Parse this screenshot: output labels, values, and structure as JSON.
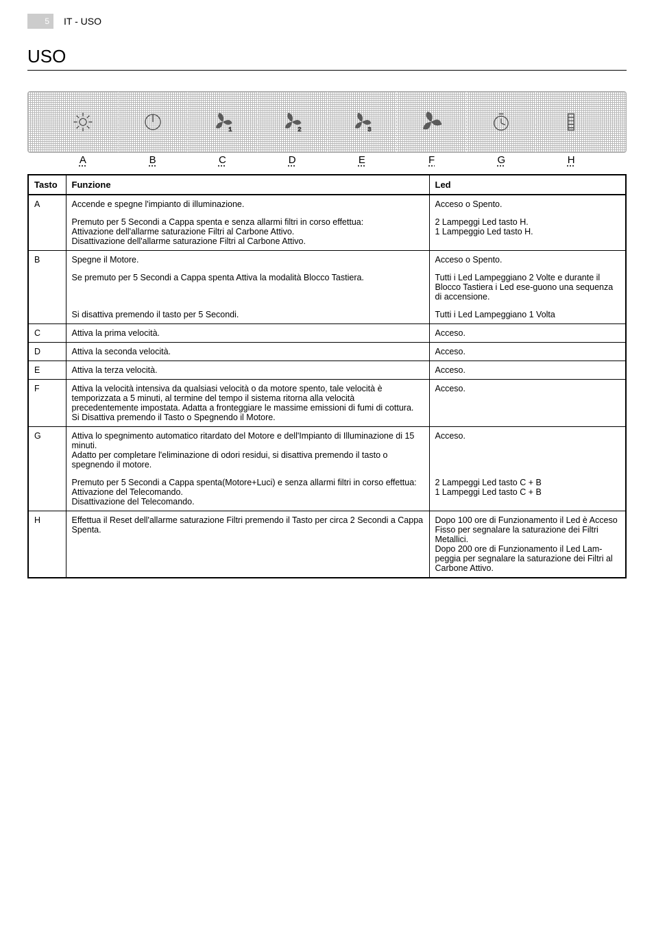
{
  "page": {
    "number": "5",
    "section": "IT - USO",
    "title": "USO"
  },
  "icon_row": {
    "letters": [
      "A",
      "B",
      "C",
      "D",
      "E",
      "F",
      "G",
      "H"
    ],
    "icons": [
      "light",
      "power",
      "fan1",
      "fan2",
      "fan3",
      "fan-intense",
      "timer",
      "filter"
    ]
  },
  "table": {
    "headers": {
      "tasto": "Tasto",
      "funzione": "Funzione",
      "led": "Led"
    },
    "rows": [
      {
        "key": "A",
        "funz": [
          "Accende e spegne l'impianto di illuminazione.",
          "Premuto per 5 Secondi a Cappa spenta e senza allarmi filtri in corso effettua:\nAttivazione dell'allarme saturazione Filtri al Carbone Attivo.\nDisattivazione dell'allarme saturazione Filtri al Carbone Attivo."
        ],
        "led": [
          "Acceso o Spento.",
          "2 Lampeggi Led tasto H.\n1 Lampeggio Led tasto H."
        ]
      },
      {
        "key": "B",
        "funz": [
          "Spegne il Motore.",
          "Se premuto per 5 Secondi a Cappa spenta Attiva la modalità Blocco Tastiera.",
          "Si disattiva premendo il tasto per 5 Secondi."
        ],
        "led": [
          "Acceso o Spento.",
          "Tutti i Led Lampeggiano 2 Volte e durante il Blocco Tastiera i Led ese-guono una sequenza di accensione.",
          "Tutti i Led Lampeggiano 1 Volta"
        ]
      },
      {
        "key": "C",
        "funz": [
          "Attiva la prima velocità."
        ],
        "led": [
          "Acceso."
        ]
      },
      {
        "key": "D",
        "funz": [
          "Attiva la seconda velocità."
        ],
        "led": [
          "Acceso."
        ]
      },
      {
        "key": "E",
        "funz": [
          "Attiva la terza velocità."
        ],
        "led": [
          "Acceso."
        ]
      },
      {
        "key": "F",
        "funz": [
          "Attiva la velocità intensiva da qualsiasi velocità o da motore spento, tale velocità è temporizzata a 5 minuti, al termine del tempo il sistema ritorna alla velocità precedentemente impostata. Adatta a fronteggiare le massime emissioni di fumi di cottura.\nSi Disattiva premendo il Tasto o Spegnendo il Motore."
        ],
        "led": [
          "Acceso."
        ]
      },
      {
        "key": "G",
        "funz": [
          "Attiva lo spegnimento automatico ritardato del Motore e dell'Impianto di Illuminazione di 15 minuti.\nAdatto per completare l'eliminazione di odori residui, si disattiva premendo il tasto o spegnendo il motore.",
          "Premuto per 5 Secondi a Cappa spenta(Motore+Luci) e senza allarmi filtri in corso effettua:\nAttivazione del Telecomando.\nDisattivazione del Telecomando."
        ],
        "led": [
          "Acceso.",
          "2 Lampeggi Led tasto C + B\n1 Lampeggi Led tasto C + B"
        ]
      },
      {
        "key": "H",
        "funz": [
          "Effettua il Reset dell'allarme saturazione Filtri premendo il Tasto per circa 2 Secondi a Cappa Spenta."
        ],
        "led": [
          "Dopo 100 ore di Funzionamento il Led è Acceso Fisso per segnalare la saturazione dei Filtri Metallici.\nDopo 200 ore di Funzionamento il Led Lam-peggia per segnalare la saturazione dei Filtri al Carbone Attivo."
        ]
      }
    ]
  }
}
